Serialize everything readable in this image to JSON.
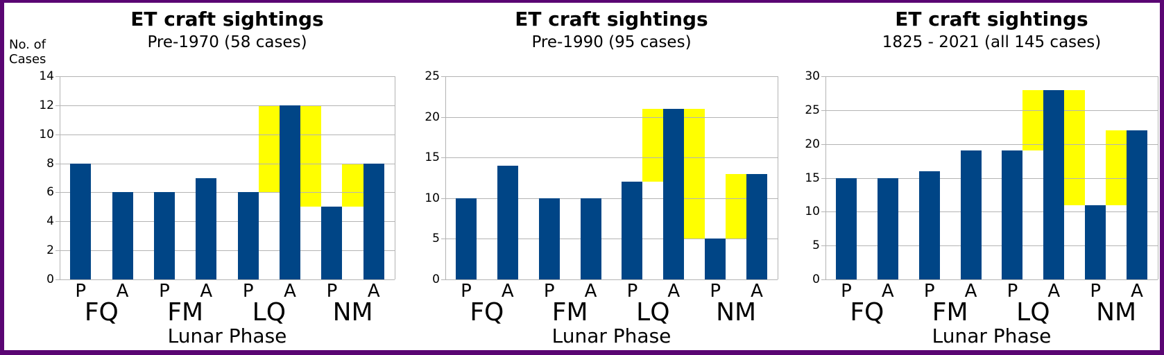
{
  "frame": {
    "border_color": "#5a0573",
    "background": "#ffffff"
  },
  "chart_data": [
    {
      "type": "bar",
      "title": "ET craft sightings",
      "subtitle": "Pre-1970 (58 cases)",
      "ylabel_lines": [
        "No. of",
        "Cases"
      ],
      "xlabel": "Lunar Phase",
      "groups": [
        "FQ",
        "FM",
        "LQ",
        "NM"
      ],
      "phase_labels": [
        "P",
        "A",
        "P",
        "A",
        "P",
        "A",
        "P",
        "A"
      ],
      "categories": [
        "FQ-P",
        "FQ-A",
        "FM-P",
        "FM-A",
        "LQ-P",
        "LQ-A",
        "NM-P",
        "NM-A"
      ],
      "values": [
        8,
        6,
        6,
        7,
        6,
        12,
        5,
        8
      ],
      "ylim": [
        0,
        14
      ],
      "ytick_step": 2,
      "yticks": [
        0,
        2,
        4,
        6,
        8,
        10,
        12,
        14
      ],
      "highlights": [
        {
          "between": [
            4,
            5
          ],
          "from": 6,
          "to": 12
        },
        {
          "between": [
            5,
            6
          ],
          "from": 5,
          "to": 12
        },
        {
          "between": [
            6,
            7
          ],
          "from": 5,
          "to": 8
        }
      ],
      "bar_color": "#004586",
      "highlight_color": "#ffff00",
      "grid_color": "#b3b3b3",
      "grid": "horizontal",
      "legend": "none"
    },
    {
      "type": "bar",
      "title": "ET craft sightings",
      "subtitle": "Pre-1990 (95 cases)",
      "xlabel": "Lunar Phase",
      "groups": [
        "FQ",
        "FM",
        "LQ",
        "NM"
      ],
      "phase_labels": [
        "P",
        "A",
        "P",
        "A",
        "P",
        "A",
        "P",
        "A"
      ],
      "categories": [
        "FQ-P",
        "FQ-A",
        "FM-P",
        "FM-A",
        "LQ-P",
        "LQ-A",
        "NM-P",
        "NM-A"
      ],
      "values": [
        10,
        14,
        10,
        10,
        12,
        21,
        5,
        13
      ],
      "ylim": [
        0,
        25
      ],
      "ytick_step": 5,
      "yticks": [
        0,
        5,
        10,
        15,
        20,
        25
      ],
      "highlights": [
        {
          "between": [
            4,
            5
          ],
          "from": 12,
          "to": 21
        },
        {
          "between": [
            5,
            6
          ],
          "from": 5,
          "to": 21
        },
        {
          "between": [
            6,
            7
          ],
          "from": 5,
          "to": 13
        }
      ],
      "bar_color": "#004586",
      "highlight_color": "#ffff00",
      "grid_color": "#b3b3b3",
      "grid": "horizontal",
      "legend": "none"
    },
    {
      "type": "bar",
      "title": "ET craft sightings",
      "subtitle": "1825 - 2021 (all 145 cases)",
      "xlabel": "Lunar Phase",
      "groups": [
        "FQ",
        "FM",
        "LQ",
        "NM"
      ],
      "phase_labels": [
        "P",
        "A",
        "P",
        "A",
        "P",
        "A",
        "P",
        "A"
      ],
      "categories": [
        "FQ-P",
        "FQ-A",
        "FM-P",
        "FM-A",
        "LQ-P",
        "LQ-A",
        "NM-P",
        "NM-A"
      ],
      "values": [
        15,
        15,
        16,
        19,
        19,
        28,
        11,
        22
      ],
      "ylim": [
        0,
        30
      ],
      "ytick_step": 5,
      "yticks": [
        0,
        5,
        10,
        15,
        20,
        25,
        30
      ],
      "highlights": [
        {
          "between": [
            4,
            5
          ],
          "from": 19,
          "to": 28
        },
        {
          "between": [
            5,
            6
          ],
          "from": 11,
          "to": 28
        },
        {
          "between": [
            6,
            7
          ],
          "from": 11,
          "to": 22
        }
      ],
      "bar_color": "#004586",
      "highlight_color": "#ffff00",
      "grid_color": "#b3b3b3",
      "grid": "horizontal",
      "legend": "none"
    }
  ]
}
